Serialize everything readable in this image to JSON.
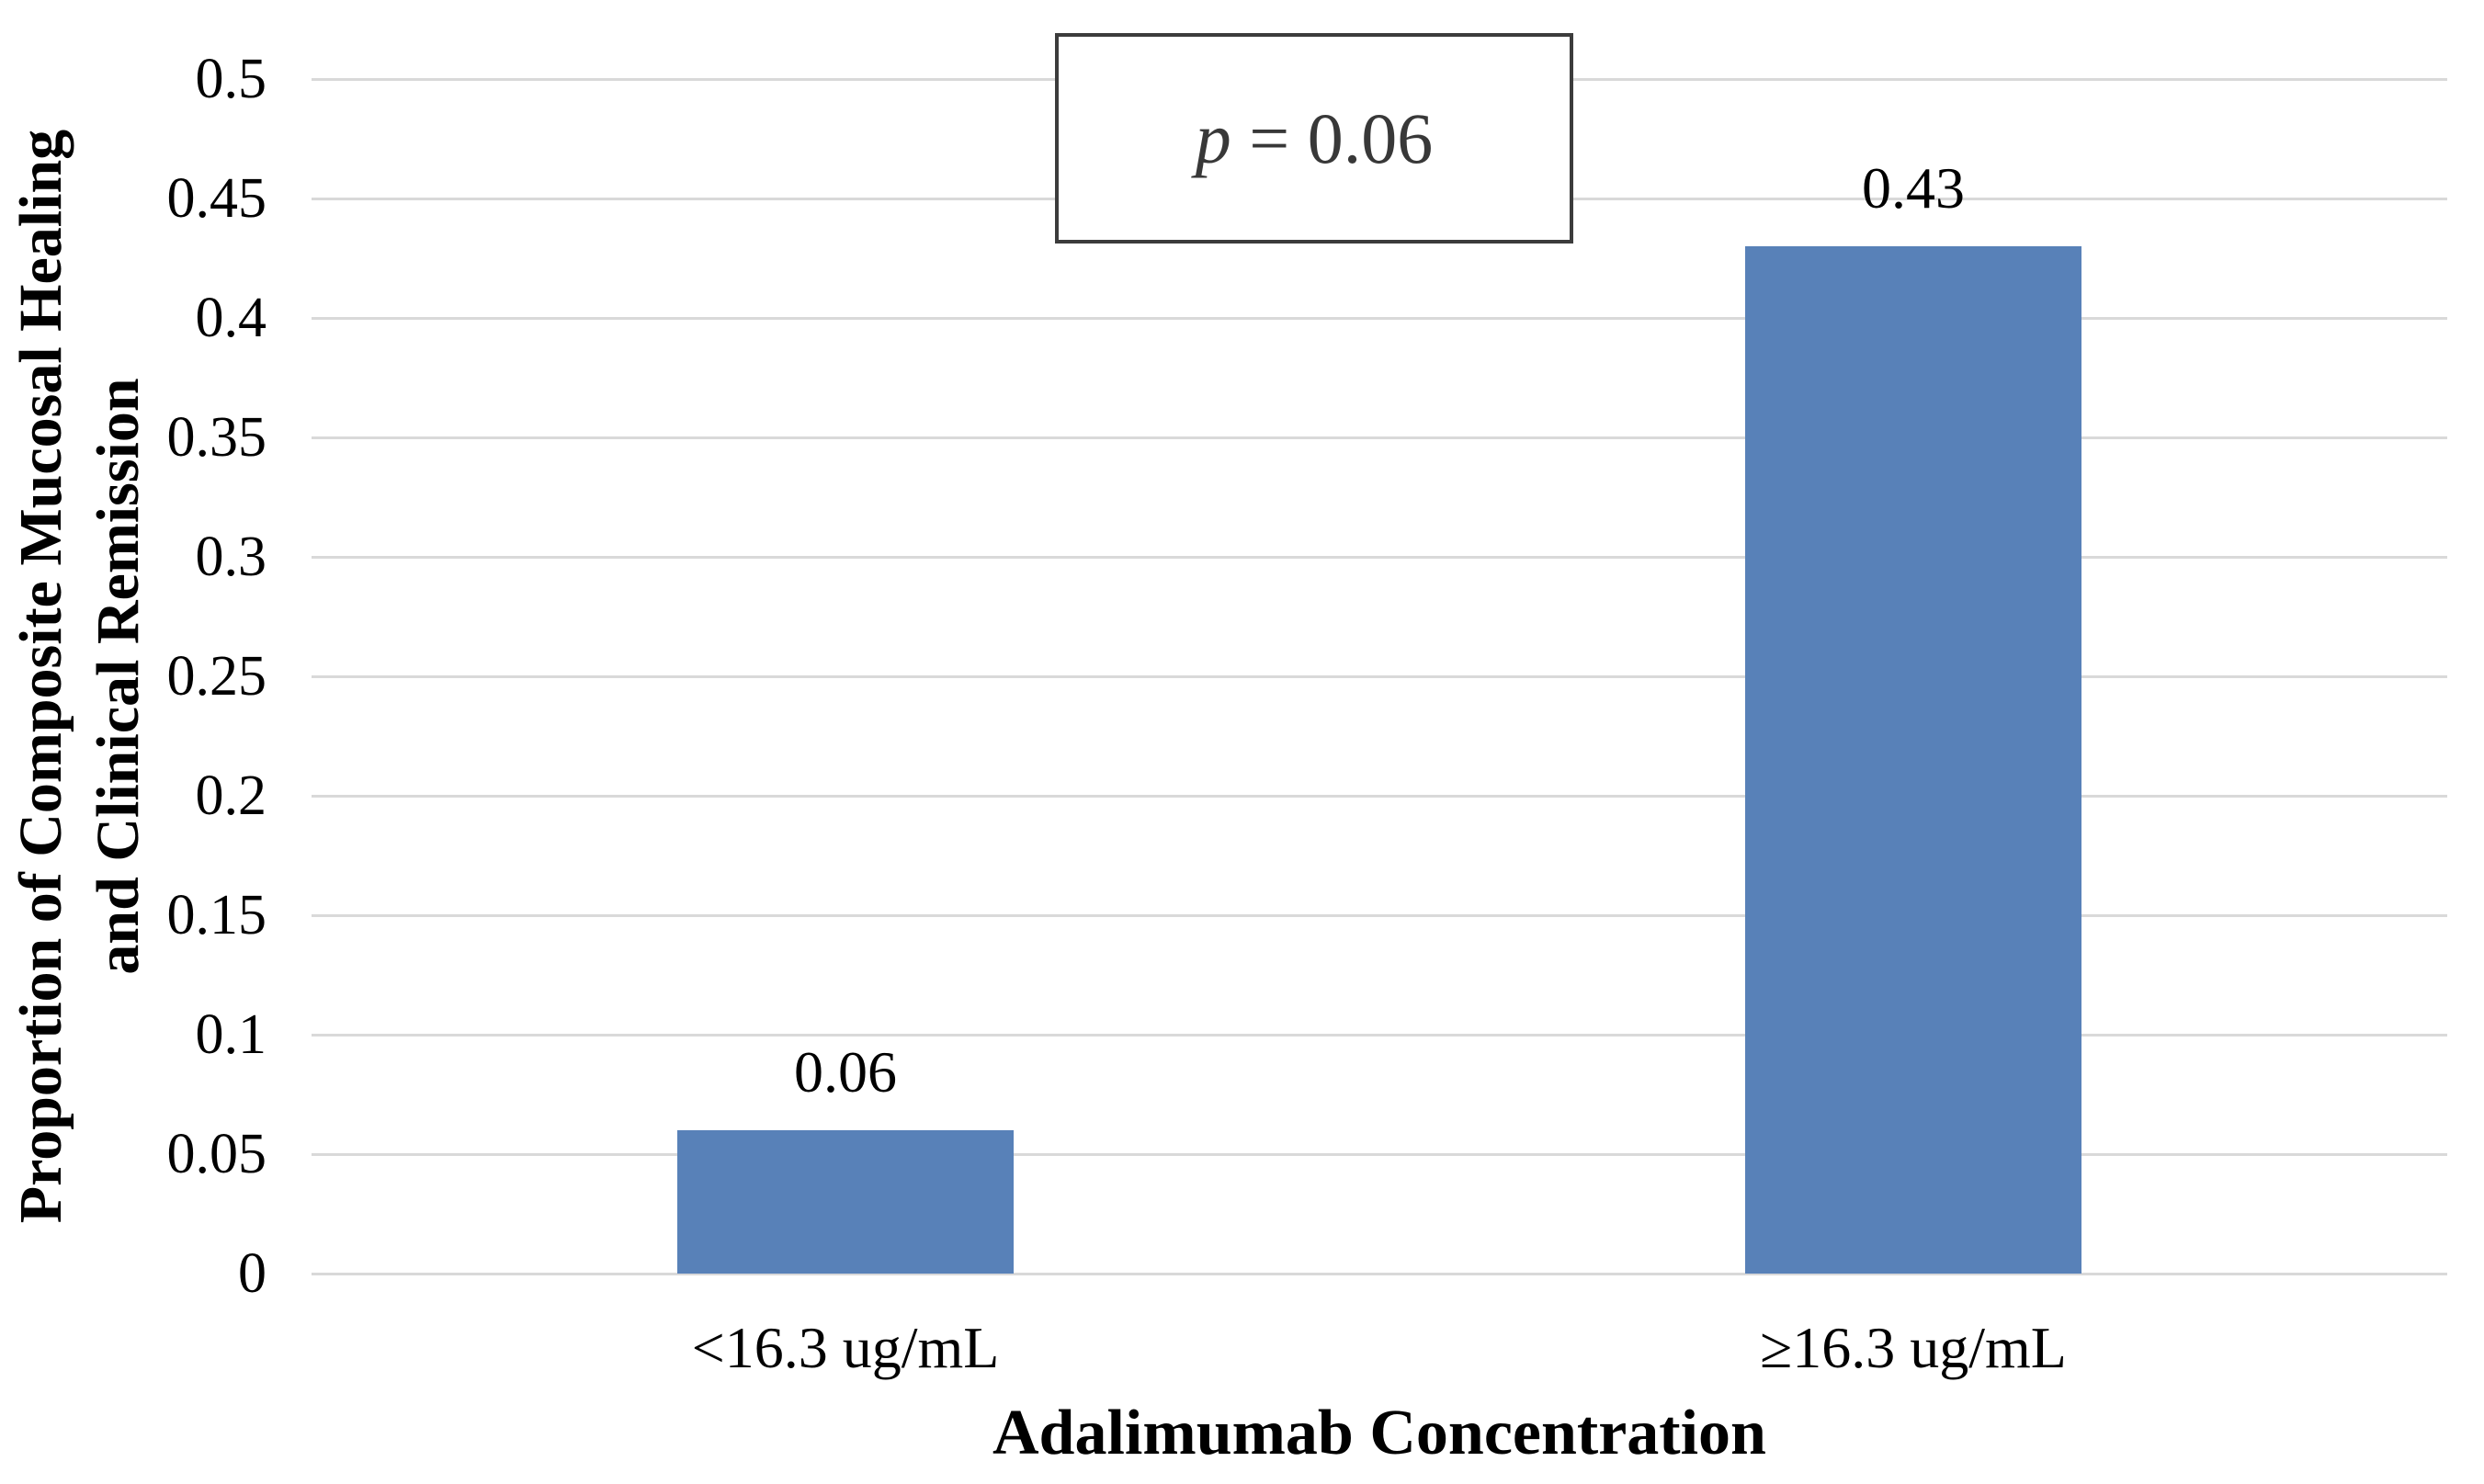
{
  "chart_data": {
    "type": "bar",
    "title": "",
    "categories": [
      "<16.3 ug/mL",
      "≥16.3 ug/mL"
    ],
    "values": [
      0.06,
      0.43
    ],
    "data_labels": [
      "0.06",
      "0.43"
    ],
    "xlabel": "Adalimumab Concentration",
    "ylabel": "Proportion of Composite Mucosal Healing and Clinical Remission",
    "ylabel_lines": [
      "Proportion of Composite Mucosal Healing",
      "and Clinical Remission"
    ],
    "ylim": [
      0,
      0.5
    ],
    "ytick_step": 0.05,
    "yticks": [
      "0.5",
      "0.45",
      "0.4",
      "0.35",
      "0.3",
      "0.25",
      "0.2",
      "0.15",
      "0.1",
      "0.05",
      "0"
    ],
    "grid": true,
    "legend_position": "none",
    "annotation": {
      "text": "p = 0.06",
      "symbol": "p",
      "rest": " = 0.06"
    },
    "colors": {
      "bar": "#5881B8",
      "gridline": "#D9D9D9",
      "annotation_border": "#3C3C3C",
      "text": "#000000"
    }
  }
}
